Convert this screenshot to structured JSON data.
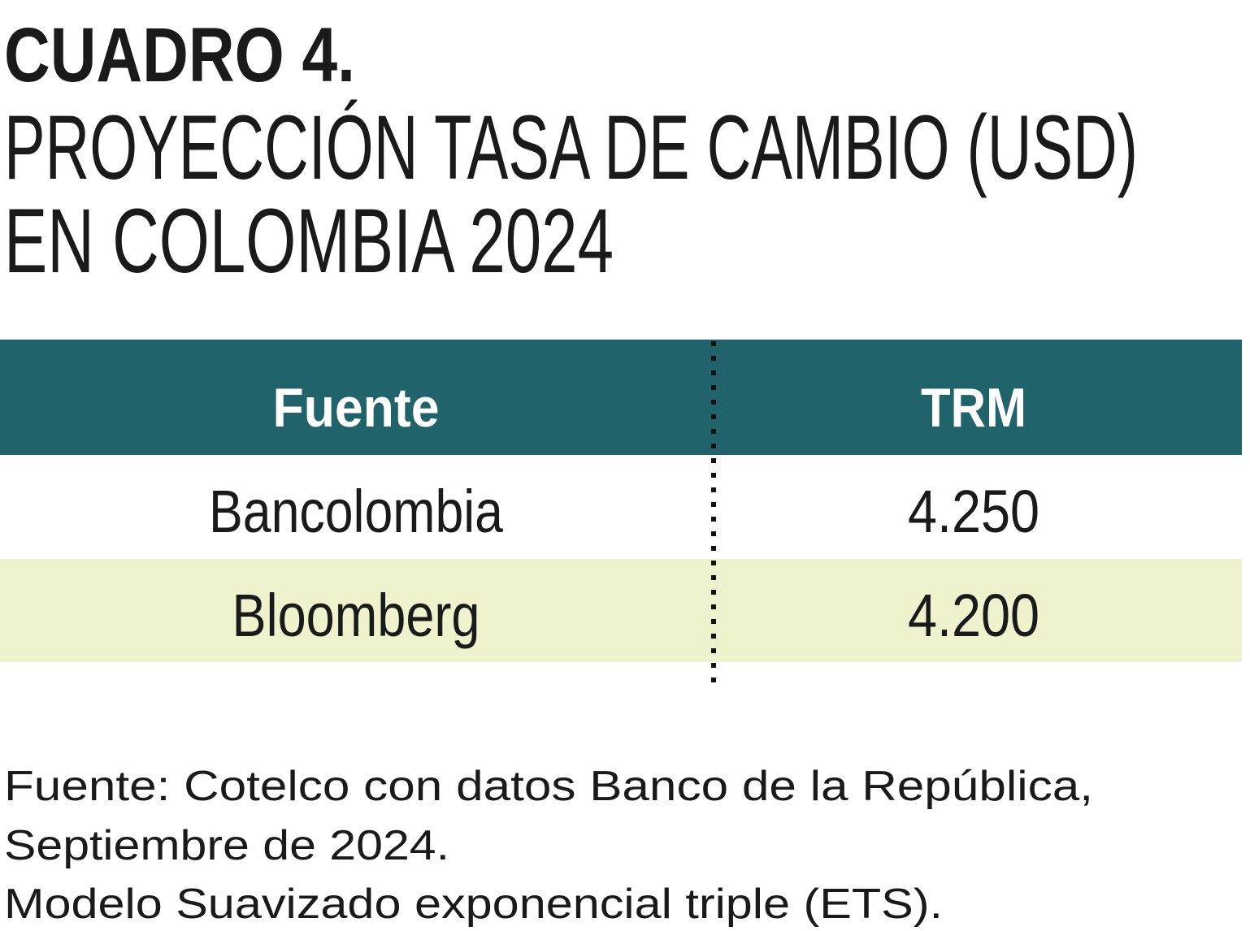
{
  "header": {
    "label": "CUADRO 4.",
    "title_lines": [
      "PROYECCIÓN TASA DE CAMBIO (USD)",
      "EN COLOMBIA 2024"
    ]
  },
  "table": {
    "columns": [
      "Fuente",
      "TRM"
    ],
    "rows": [
      [
        "Bancolombia",
        "4.250"
      ],
      [
        "Bloomberg",
        "4.200"
      ]
    ]
  },
  "notes": [
    "Fuente: Cotelco con datos Banco de la República,",
    "Septiembre de 2024.",
    "Modelo Suavizado exponencial triple (ETS)."
  ]
}
